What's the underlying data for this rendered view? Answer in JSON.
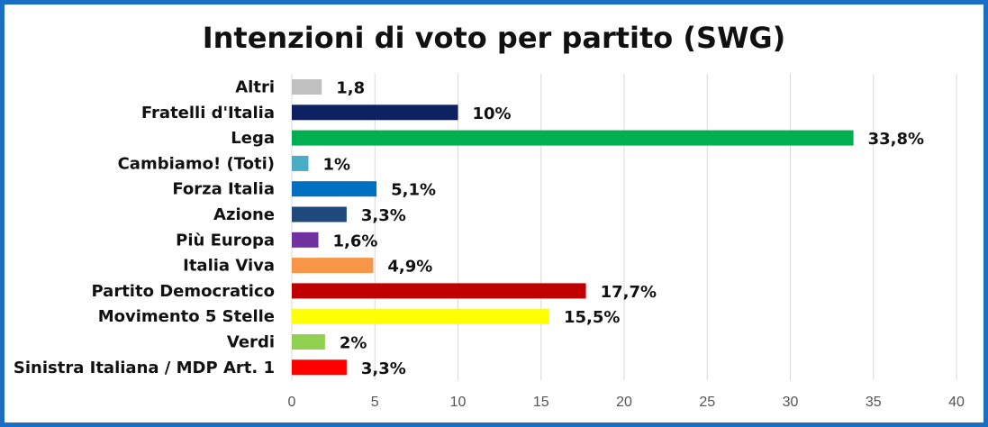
{
  "chart_data": {
    "type": "bar",
    "orientation": "horizontal",
    "title": "Intenzioni di voto per partito (SWG)",
    "xlim": [
      0,
      40
    ],
    "x_ticks": [
      0,
      5,
      10,
      15,
      20,
      25,
      30,
      35,
      40
    ],
    "grid": true,
    "bars": [
      {
        "category": "Altri",
        "value": 1.8,
        "label": "1,8",
        "color": "#c0c0c0"
      },
      {
        "category": "Fratelli d'Italia",
        "value": 10,
        "label": "10%",
        "color": "#0d2160"
      },
      {
        "category": "Lega",
        "value": 33.8,
        "label": "33,8%",
        "color": "#00b050"
      },
      {
        "category": "Cambiamo! (Toti)",
        "value": 1,
        "label": "1%",
        "color": "#4bacc6"
      },
      {
        "category": "Forza Italia",
        "value": 5.1,
        "label": "5,1%",
        "color": "#0070c0"
      },
      {
        "category": "Azione",
        "value": 3.3,
        "label": "3,3%",
        "color": "#1f497d"
      },
      {
        "category": "Più Europa",
        "value": 1.6,
        "label": "1,6%",
        "color": "#7030a0"
      },
      {
        "category": "Italia Viva",
        "value": 4.9,
        "label": "4,9%",
        "color": "#f79646"
      },
      {
        "category": "Partito Democratico",
        "value": 17.7,
        "label": "17,7%",
        "color": "#c00000"
      },
      {
        "category": "Movimento 5 Stelle",
        "value": 15.5,
        "label": "15,5%",
        "color": "#ffff00"
      },
      {
        "category": "Verdi",
        "value": 2,
        "label": "2%",
        "color": "#92d050"
      },
      {
        "category": "Sinistra Italiana / MDP Art. 1",
        "value": 3.3,
        "label": "3,3%",
        "color": "#ff0000"
      }
    ]
  },
  "colors": {
    "frame_border": "#1a6fc4",
    "gridline": "#d9d9d9"
  }
}
